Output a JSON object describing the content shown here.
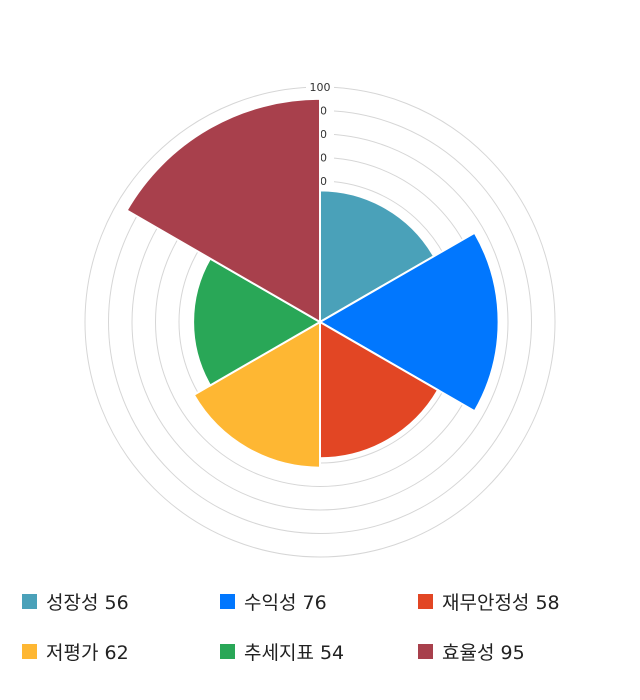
{
  "chart_data": {
    "type": "polar-area",
    "categories": [
      "성장성",
      "수익성",
      "재무안정성",
      "저평가",
      "추세지표",
      "효율성"
    ],
    "values": [
      56,
      76,
      58,
      62,
      54,
      95
    ],
    "colors": [
      "#4aa1b9",
      "#0177fe",
      "#e24624",
      "#feb733",
      "#29a757",
      "#a8404c"
    ],
    "rlim": [
      0,
      100
    ],
    "tick_labels": [
      "100",
      "90",
      "80",
      "70",
      "60"
    ],
    "legend": [
      "성장성 56",
      "수익성 76",
      "재무안정성 58",
      "저평가 62",
      "추세지표 54",
      "효율성 95"
    ],
    "legend_position": "bottom"
  }
}
